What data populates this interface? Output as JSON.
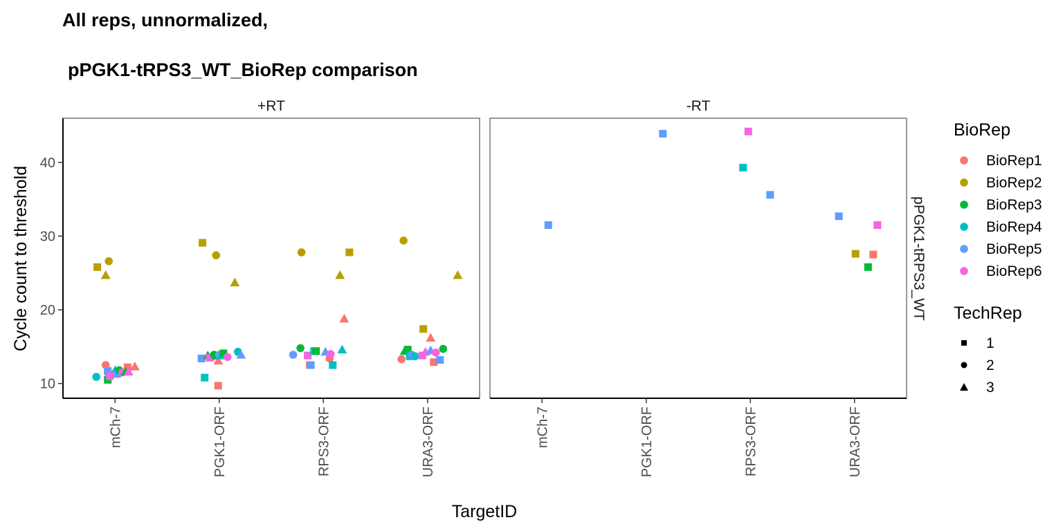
{
  "chart_data": {
    "type": "scatter",
    "title_line1": "All reps, unnormalized,",
    "title_line2": "pPGK1-tRPS3_WT_BioRep comparison",
    "xlabel": "TargetID",
    "ylabel": "Cycle count to threshold",
    "row_strip": "pPGK1-tRPS3_WT",
    "categories": [
      "mCh-7",
      "PGK1-ORF",
      "RPS3-ORF",
      "URA3-ORF"
    ],
    "ylim": [
      8,
      46
    ],
    "yticks": [
      10,
      20,
      30,
      40
    ],
    "grid": false,
    "legend_position": "right",
    "legends": {
      "color": {
        "title": "BioRep",
        "entries": [
          {
            "label": "BioRep1",
            "color": "#F8766D"
          },
          {
            "label": "BioRep2",
            "color": "#B79F00"
          },
          {
            "label": "BioRep3",
            "color": "#00BA38"
          },
          {
            "label": "BioRep4",
            "color": "#00BFC4"
          },
          {
            "label": "BioRep5",
            "color": "#619CFF"
          },
          {
            "label": "BioRep6",
            "color": "#F564E3"
          }
        ]
      },
      "shape": {
        "title": "TechRep",
        "entries": [
          {
            "label": "1",
            "shape": "square"
          },
          {
            "label": "2",
            "shape": "circle"
          },
          {
            "label": "3",
            "shape": "triangle"
          }
        ]
      }
    },
    "panels": [
      {
        "name": "+RT",
        "points": [
          {
            "x": "mCh-7",
            "jitter": -0.17,
            "y": 25.8,
            "bio": 2,
            "tech": 1
          },
          {
            "x": "mCh-7",
            "jitter": -0.06,
            "y": 26.6,
            "bio": 2,
            "tech": 2
          },
          {
            "x": "mCh-7",
            "jitter": -0.09,
            "y": 24.7,
            "bio": 2,
            "tech": 3
          },
          {
            "x": "mCh-7",
            "jitter": -0.09,
            "y": 12.5,
            "bio": 1,
            "tech": 2
          },
          {
            "x": "mCh-7",
            "jitter": 0.12,
            "y": 12.2,
            "bio": 1,
            "tech": 1
          },
          {
            "x": "mCh-7",
            "jitter": 0.19,
            "y": 12.3,
            "bio": 1,
            "tech": 3
          },
          {
            "x": "mCh-7",
            "jitter": -0.18,
            "y": 10.9,
            "bio": 4,
            "tech": 2
          },
          {
            "x": "mCh-7",
            "jitter": -0.07,
            "y": 10.5,
            "bio": 3,
            "tech": 1
          },
          {
            "x": "mCh-7",
            "jitter": -0.07,
            "y": 11.5,
            "bio": 5,
            "tech": 2
          },
          {
            "x": "mCh-7",
            "jitter": -0.07,
            "y": 11.7,
            "bio": 5,
            "tech": 1
          },
          {
            "x": "mCh-7",
            "jitter": 0.0,
            "y": 11.8,
            "bio": 4,
            "tech": 3
          },
          {
            "x": "mCh-7",
            "jitter": 0.02,
            "y": 11.3,
            "bio": 5,
            "tech": 1
          },
          {
            "x": "mCh-7",
            "jitter": 0.04,
            "y": 11.8,
            "bio": 3,
            "tech": 2
          },
          {
            "x": "mCh-7",
            "jitter": 0.07,
            "y": 11.5,
            "bio": 6,
            "tech": 2
          },
          {
            "x": "mCh-7",
            "jitter": -0.05,
            "y": 11.0,
            "bio": 6,
            "tech": 1
          },
          {
            "x": "mCh-7",
            "jitter": 0.1,
            "y": 11.6,
            "bio": 3,
            "tech": 3
          },
          {
            "x": "mCh-7",
            "jitter": 0.13,
            "y": 11.6,
            "bio": 6,
            "tech": 3
          },
          {
            "x": "PGK1-ORF",
            "jitter": -0.16,
            "y": 29.1,
            "bio": 2,
            "tech": 1
          },
          {
            "x": "PGK1-ORF",
            "jitter": -0.03,
            "y": 27.4,
            "bio": 2,
            "tech": 2
          },
          {
            "x": "PGK1-ORF",
            "jitter": 0.15,
            "y": 23.7,
            "bio": 2,
            "tech": 3
          },
          {
            "x": "PGK1-ORF",
            "jitter": -0.17,
            "y": 13.4,
            "bio": 5,
            "tech": 1
          },
          {
            "x": "PGK1-ORF",
            "jitter": -0.11,
            "y": 13.8,
            "bio": 3,
            "tech": 3
          },
          {
            "x": "PGK1-ORF",
            "jitter": -0.09,
            "y": 13.5,
            "bio": 6,
            "tech": 1
          },
          {
            "x": "PGK1-ORF",
            "jitter": -0.07,
            "y": 13.6,
            "bio": 6,
            "tech": 2
          },
          {
            "x": "PGK1-ORF",
            "jitter": -0.05,
            "y": 13.9,
            "bio": 3,
            "tech": 2
          },
          {
            "x": "PGK1-ORF",
            "jitter": -0.03,
            "y": 13.8,
            "bio": 3,
            "tech": 1
          },
          {
            "x": "PGK1-ORF",
            "jitter": -0.01,
            "y": 13.1,
            "bio": 1,
            "tech": 3
          },
          {
            "x": "PGK1-ORF",
            "jitter": 0.0,
            "y": 13.9,
            "bio": 5,
            "tech": 2
          },
          {
            "x": "PGK1-ORF",
            "jitter": 0.02,
            "y": 13.8,
            "bio": 4,
            "tech": 3
          },
          {
            "x": "PGK1-ORF",
            "jitter": 0.04,
            "y": 14.1,
            "bio": 3,
            "tech": 1
          },
          {
            "x": "PGK1-ORF",
            "jitter": 0.08,
            "y": 13.6,
            "bio": 6,
            "tech": 2
          },
          {
            "x": "PGK1-ORF",
            "jitter": 0.18,
            "y": 14.3,
            "bio": 4,
            "tech": 2
          },
          {
            "x": "PGK1-ORF",
            "jitter": 0.21,
            "y": 13.9,
            "bio": 5,
            "tech": 3
          },
          {
            "x": "PGK1-ORF",
            "jitter": -0.14,
            "y": 10.8,
            "bio": 4,
            "tech": 1
          },
          {
            "x": "PGK1-ORF",
            "jitter": -0.01,
            "y": 9.7,
            "bio": 1,
            "tech": 1
          },
          {
            "x": "RPS3-ORF",
            "jitter": -0.21,
            "y": 27.8,
            "bio": 2,
            "tech": 2
          },
          {
            "x": "RPS3-ORF",
            "jitter": 0.25,
            "y": 27.8,
            "bio": 2,
            "tech": 1
          },
          {
            "x": "RPS3-ORF",
            "jitter": 0.16,
            "y": 24.7,
            "bio": 2,
            "tech": 3
          },
          {
            "x": "RPS3-ORF",
            "jitter": 0.2,
            "y": 18.8,
            "bio": 1,
            "tech": 3
          },
          {
            "x": "RPS3-ORF",
            "jitter": -0.29,
            "y": 13.9,
            "bio": 5,
            "tech": 2
          },
          {
            "x": "RPS3-ORF",
            "jitter": -0.22,
            "y": 14.8,
            "bio": 3,
            "tech": 2
          },
          {
            "x": "RPS3-ORF",
            "jitter": -0.15,
            "y": 13.8,
            "bio": 6,
            "tech": 1
          },
          {
            "x": "RPS3-ORF",
            "jitter": -0.13,
            "y": 12.5,
            "bio": 1,
            "tech": 1
          },
          {
            "x": "RPS3-ORF",
            "jitter": -0.12,
            "y": 12.5,
            "bio": 5,
            "tech": 1
          },
          {
            "x": "RPS3-ORF",
            "jitter": -0.09,
            "y": 14.4,
            "bio": 4,
            "tech": 1
          },
          {
            "x": "RPS3-ORF",
            "jitter": -0.07,
            "y": 14.4,
            "bio": 3,
            "tech": 1
          },
          {
            "x": "RPS3-ORF",
            "jitter": 0.02,
            "y": 14.3,
            "bio": 5,
            "tech": 3
          },
          {
            "x": "RPS3-ORF",
            "jitter": 0.06,
            "y": 13.4,
            "bio": 1,
            "tech": 2
          },
          {
            "x": "RPS3-ORF",
            "jitter": 0.07,
            "y": 14.0,
            "bio": 6,
            "tech": 2
          },
          {
            "x": "RPS3-ORF",
            "jitter": 0.09,
            "y": 12.5,
            "bio": 4,
            "tech": 1
          },
          {
            "x": "RPS3-ORF",
            "jitter": 0.18,
            "y": 14.6,
            "bio": 4,
            "tech": 3
          },
          {
            "x": "URA3-ORF",
            "jitter": -0.23,
            "y": 29.4,
            "bio": 2,
            "tech": 2
          },
          {
            "x": "URA3-ORF",
            "jitter": 0.29,
            "y": 24.7,
            "bio": 2,
            "tech": 3
          },
          {
            "x": "URA3-ORF",
            "jitter": -0.04,
            "y": 17.4,
            "bio": 2,
            "tech": 1
          },
          {
            "x": "URA3-ORF",
            "jitter": 0.03,
            "y": 16.2,
            "bio": 1,
            "tech": 3
          },
          {
            "x": "URA3-ORF",
            "jitter": -0.25,
            "y": 13.3,
            "bio": 1,
            "tech": 2
          },
          {
            "x": "URA3-ORF",
            "jitter": -0.22,
            "y": 14.4,
            "bio": 3,
            "tech": 3
          },
          {
            "x": "URA3-ORF",
            "jitter": -0.19,
            "y": 14.6,
            "bio": 3,
            "tech": 1
          },
          {
            "x": "URA3-ORF",
            "jitter": -0.17,
            "y": 13.7,
            "bio": 4,
            "tech": 1
          },
          {
            "x": "URA3-ORF",
            "jitter": -0.15,
            "y": 13.9,
            "bio": 5,
            "tech": 2
          },
          {
            "x": "URA3-ORF",
            "jitter": -0.12,
            "y": 13.7,
            "bio": 4,
            "tech": 2
          },
          {
            "x": "URA3-ORF",
            "jitter": -0.05,
            "y": 13.8,
            "bio": 6,
            "tech": 1
          },
          {
            "x": "URA3-ORF",
            "jitter": -0.02,
            "y": 14.3,
            "bio": 6,
            "tech": 3
          },
          {
            "x": "URA3-ORF",
            "jitter": 0.03,
            "y": 14.5,
            "bio": 5,
            "tech": 3
          },
          {
            "x": "URA3-ORF",
            "jitter": 0.06,
            "y": 12.9,
            "bio": 1,
            "tech": 1
          },
          {
            "x": "URA3-ORF",
            "jitter": 0.08,
            "y": 14.2,
            "bio": 6,
            "tech": 2
          },
          {
            "x": "URA3-ORF",
            "jitter": 0.12,
            "y": 13.2,
            "bio": 5,
            "tech": 1
          },
          {
            "x": "URA3-ORF",
            "jitter": 0.15,
            "y": 14.7,
            "bio": 3,
            "tech": 2
          }
        ]
      },
      {
        "name": "-RT",
        "points": [
          {
            "x": "mCh-7",
            "jitter": 0.06,
            "y": 31.5,
            "bio": 5,
            "tech": 1
          },
          {
            "x": "PGK1-ORF",
            "jitter": 0.16,
            "y": 43.9,
            "bio": 5,
            "tech": 1
          },
          {
            "x": "RPS3-ORF",
            "jitter": -0.07,
            "y": 39.3,
            "bio": 4,
            "tech": 1
          },
          {
            "x": "RPS3-ORF",
            "jitter": -0.02,
            "y": 44.2,
            "bio": 6,
            "tech": 1
          },
          {
            "x": "RPS3-ORF",
            "jitter": 0.19,
            "y": 35.6,
            "bio": 5,
            "tech": 1
          },
          {
            "x": "URA3-ORF",
            "jitter": -0.15,
            "y": 32.7,
            "bio": 5,
            "tech": 1
          },
          {
            "x": "URA3-ORF",
            "jitter": 0.01,
            "y": 27.6,
            "bio": 2,
            "tech": 1
          },
          {
            "x": "URA3-ORF",
            "jitter": 0.13,
            "y": 25.8,
            "bio": 3,
            "tech": 1
          },
          {
            "x": "URA3-ORF",
            "jitter": 0.18,
            "y": 27.5,
            "bio": 1,
            "tech": 1
          },
          {
            "x": "URA3-ORF",
            "jitter": 0.22,
            "y": 31.5,
            "bio": 6,
            "tech": 1
          }
        ]
      }
    ]
  }
}
